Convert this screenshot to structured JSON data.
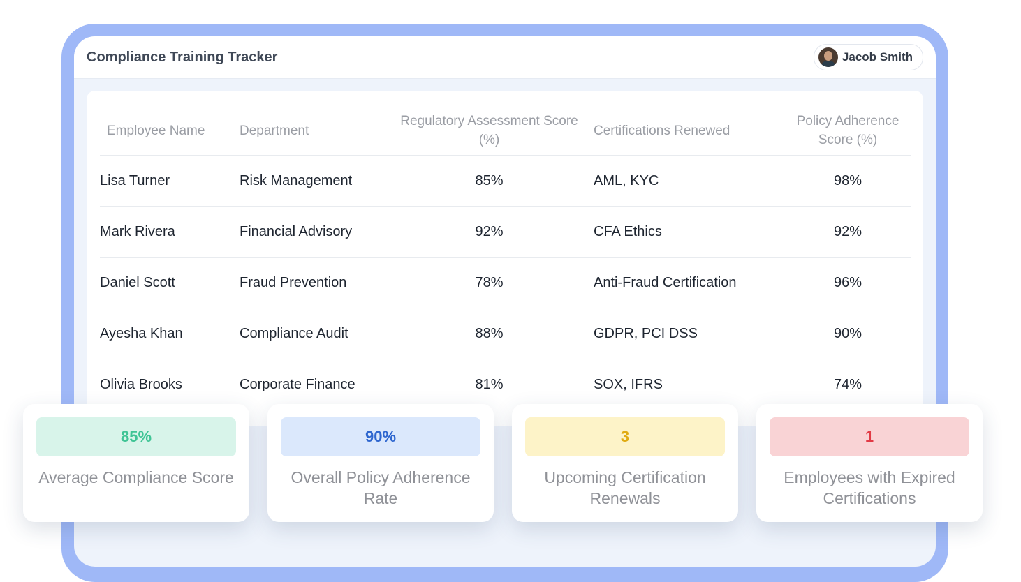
{
  "app": {
    "title": "Compliance Training Tracker"
  },
  "user": {
    "name": "Jacob Smith"
  },
  "table": {
    "headers": [
      "Employee Name",
      "Department",
      "Regulatory Assessment Score (%)",
      "Certifications Renewed",
      "Policy Adherence Score (%)"
    ],
    "rows": [
      {
        "name": "Lisa Turner",
        "department": "Risk Management",
        "assessment": "85%",
        "certifications": "AML, KYC",
        "adherence": "98%"
      },
      {
        "name": "Mark Rivera",
        "department": "Financial Advisory",
        "assessment": "92%",
        "certifications": "CFA Ethics",
        "adherence": "92%"
      },
      {
        "name": "Daniel Scott",
        "department": "Fraud Prevention",
        "assessment": "78%",
        "certifications": "Anti-Fraud Certification",
        "adherence": "96%"
      },
      {
        "name": "Ayesha Khan",
        "department": "Compliance Audit",
        "assessment": "88%",
        "certifications": "GDPR, PCI DSS",
        "adherence": "90%"
      },
      {
        "name": "Olivia Brooks",
        "department": "Corporate Finance",
        "assessment": "81%",
        "certifications": "SOX, IFRS",
        "adherence": "74%"
      }
    ]
  },
  "stats": [
    {
      "value": "85%",
      "label": "Average Compliance Score",
      "bg": "#d8f4ea",
      "color": "#3fc495"
    },
    {
      "value": "90%",
      "label": "Overall Policy Adherence Rate",
      "bg": "#dbe8fc",
      "color": "#2e66cf"
    },
    {
      "value": "3",
      "label": "Upcoming Certification Renewals",
      "bg": "#fdf3c8",
      "color": "#e0ab12"
    },
    {
      "value": "1",
      "label": "Employees with Expired Certifications",
      "bg": "#f9d3d5",
      "color": "#e23a45"
    }
  ],
  "colors": {
    "frame": "#9fb8f7",
    "screen": "#eef3fb"
  }
}
